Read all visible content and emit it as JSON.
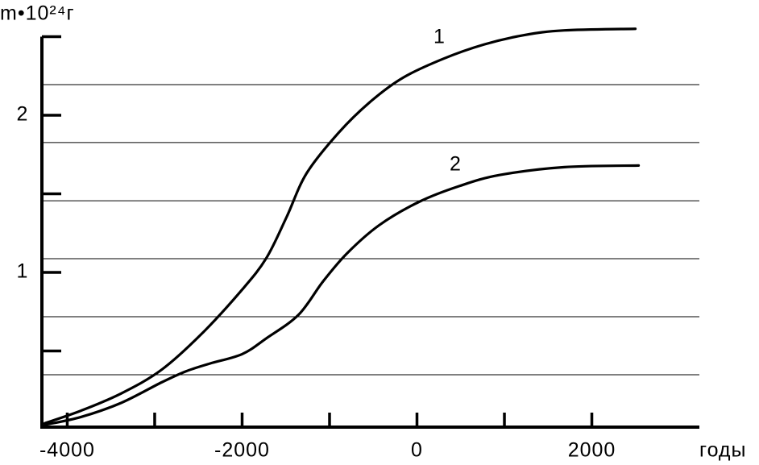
{
  "chart_data": {
    "type": "line",
    "y_label": "m•10²⁴г",
    "x_label": "годы",
    "xlim": [
      -4290,
      3230
    ],
    "ylim": [
      0,
      2.5
    ],
    "xticks": [
      -4000,
      -2000,
      0,
      2000
    ],
    "xminor": [
      -3000,
      -1000,
      1000
    ],
    "yticks": [
      1,
      2
    ],
    "yminor": [
      0.5,
      1.5,
      2.5
    ],
    "grid_y": [
      0.349,
      0.718,
      1.087,
      1.456,
      1.826,
      2.195
    ],
    "series": [
      {
        "name": "1",
        "color": "#000000",
        "x": [
          -4258,
          -3843,
          -3382,
          -2922,
          -2461,
          -2000,
          -1724,
          -1493,
          -1263,
          -894,
          -525,
          -157,
          304,
          765,
          1226,
          1687,
          2498
        ],
        "values": [
          0.04,
          0.12,
          0.23,
          0.38,
          0.61,
          0.89,
          1.09,
          1.35,
          1.63,
          1.89,
          2.09,
          2.24,
          2.36,
          2.45,
          2.51,
          2.54,
          2.55
        ]
      },
      {
        "name": "2",
        "color": "#000000",
        "x": [
          -4258,
          -3843,
          -3382,
          -2922,
          -2645,
          -2369,
          -2000,
          -1724,
          -1355,
          -1078,
          -802,
          -433,
          28,
          488,
          949,
          1687,
          2535
        ],
        "values": [
          0.03,
          0.08,
          0.17,
          0.3,
          0.37,
          0.42,
          0.48,
          0.58,
          0.73,
          0.94,
          1.12,
          1.3,
          1.45,
          1.55,
          1.62,
          1.67,
          1.68
        ]
      }
    ]
  }
}
